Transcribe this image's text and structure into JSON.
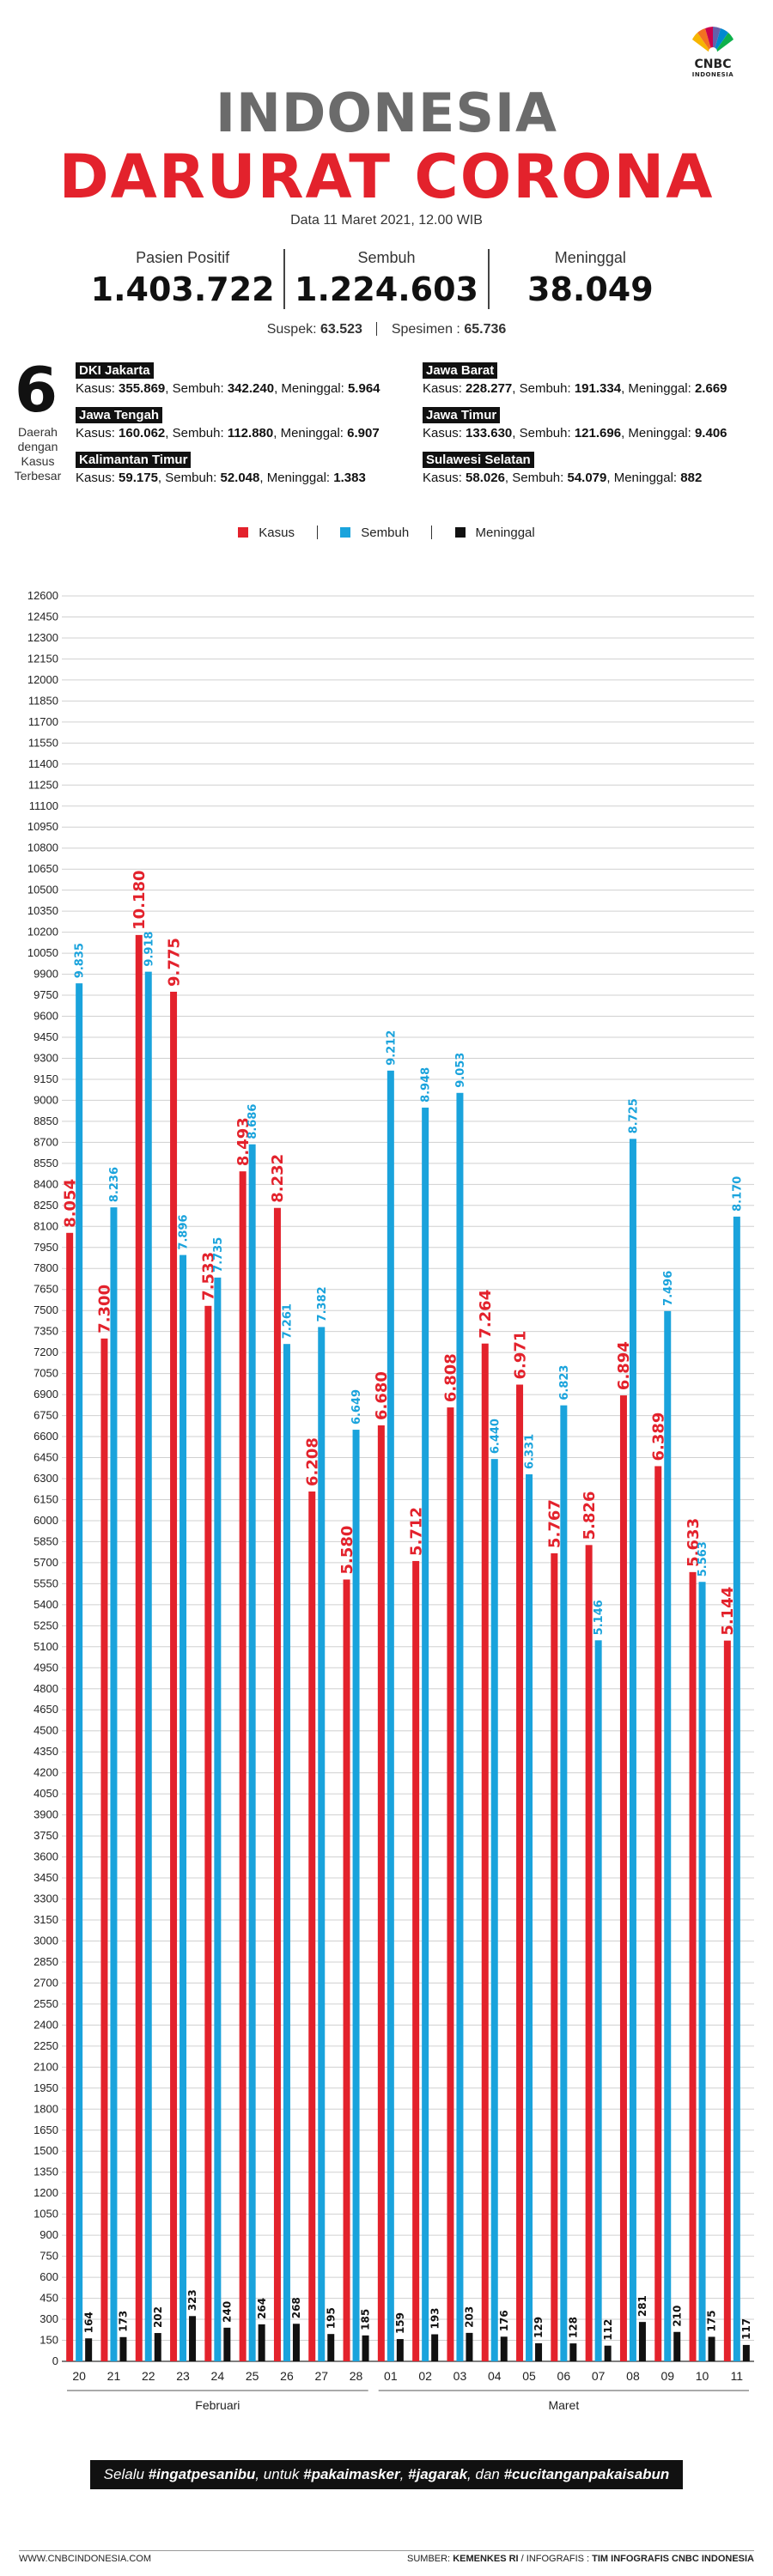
{
  "brand": {
    "name": "CNBC",
    "sub": "INDONESIA"
  },
  "header": {
    "title_line1": "INDONESIA",
    "title_line2": "DARURAT CORONA",
    "date": "Data 11 Maret 2021, 12.00 WIB"
  },
  "stats": [
    {
      "label": "Pasien Positif",
      "value": "1.403.722"
    },
    {
      "label": "Sembuh",
      "value": "1.224.603"
    },
    {
      "label": "Meninggal",
      "value": "38.049"
    }
  ],
  "suspek": {
    "label": "Suspek:",
    "value": "63.523",
    "spesimen_label": "Spesimen :",
    "spesimen_value": "65.736"
  },
  "regions_header": {
    "number": "6",
    "label": "Daerah dengan Kasus Terbesar"
  },
  "regions": [
    {
      "name": "DKI Jakarta",
      "kasus": "355.869",
      "sembuh": "342.240",
      "meninggal": "5.964"
    },
    {
      "name": "Jawa Barat",
      "kasus": "228.277",
      "sembuh": "191.334",
      "meninggal": "2.669"
    },
    {
      "name": "Jawa Tengah",
      "kasus": "160.062",
      "sembuh": "112.880",
      "meninggal": "6.907"
    },
    {
      "name": "Jawa Timur",
      "kasus": "133.630",
      "sembuh": "121.696",
      "meninggal": "9.406"
    },
    {
      "name": "Kalimantan Timur",
      "kasus": "59.175",
      "sembuh": "52.048",
      "meninggal": "1.383"
    },
    {
      "name": "Sulawesi Selatan",
      "kasus": "58.026",
      "sembuh": "54.079",
      "meninggal": "882"
    }
  ],
  "region_labels": {
    "kasus": "Kasus:",
    "sembuh": "Sembuh:",
    "meninggal": "Meninggal:"
  },
  "legend": [
    {
      "label": "Kasus",
      "color": "#e3222c"
    },
    {
      "label": "Sembuh",
      "color": "#1aa3dc"
    },
    {
      "label": "Meninggal",
      "color": "#111111"
    }
  ],
  "colors": {
    "kasus": "#e3222c",
    "sembuh": "#1aa3dc",
    "meninggal": "#111111",
    "title_gray": "#6b6b6b"
  },
  "chart_data": {
    "type": "bar",
    "categories": [
      "20",
      "21",
      "22",
      "23",
      "24",
      "25",
      "26",
      "27",
      "28",
      "01",
      "02",
      "03",
      "04",
      "05",
      "06",
      "07",
      "08",
      "09",
      "10",
      "11"
    ],
    "groups": [
      {
        "label": "Februari",
        "count": 9
      },
      {
        "label": "Maret",
        "count": 11
      }
    ],
    "series": [
      {
        "name": "Kasus",
        "color": "#e3222c",
        "values": [
          8054,
          7300,
          10180,
          9775,
          7533,
          8493,
          8232,
          6208,
          5580,
          6680,
          5712,
          6808,
          7264,
          6971,
          5767,
          5826,
          6894,
          6389,
          5633,
          5144
        ],
        "labels": [
          "8.054",
          "7.300",
          "10.180",
          "9.775",
          "7.533",
          "8.493",
          "8.232",
          "6.208",
          "5.580",
          "6.680",
          "5.712",
          "6.808",
          "7.264",
          "6.971",
          "5.767",
          "5.826",
          "6.894",
          "6.389",
          "5.633",
          "5.144"
        ]
      },
      {
        "name": "Sembuh",
        "color": "#1aa3dc",
        "values": [
          9835,
          8236,
          9918,
          7896,
          7735,
          8686,
          7261,
          7382,
          6649,
          9212,
          8948,
          9053,
          6440,
          6331,
          6823,
          5146,
          8725,
          7496,
          5563,
          8170
        ],
        "labels": [
          "9.835",
          "8.236",
          "9.918",
          "7.896",
          "7.735",
          "8.686",
          "7.261",
          "7.382",
          "6.649",
          "9.212",
          "8.948",
          "9.053",
          "6.440",
          "6.331",
          "6.823",
          "5.146",
          "8.725",
          "7.496",
          "5.563",
          "8.170"
        ]
      },
      {
        "name": "Meninggal",
        "color": "#111111",
        "values": [
          164,
          173,
          202,
          323,
          240,
          264,
          268,
          195,
          185,
          159,
          193,
          203,
          176,
          129,
          128,
          112,
          281,
          210,
          175,
          117
        ],
        "labels": [
          "164",
          "173",
          "202",
          "323",
          "240",
          "264",
          "268",
          "195",
          "185",
          "159",
          "193",
          "203",
          "176",
          "129",
          "128",
          "112",
          "281",
          "210",
          "175",
          "117"
        ]
      }
    ],
    "ylim": [
      0,
      12600
    ],
    "ytick_step": 150,
    "grid": true,
    "legend_position": "top-center"
  },
  "footer": {
    "slogan_prefix": "Selalu ",
    "slogan_1": "#ingatpesanibu",
    "slogan_mid1": ", untuk ",
    "slogan_2": "#pakaimasker",
    "slogan_mid2": ", ",
    "slogan_3": "#jagarak",
    "slogan_mid3": ", dan ",
    "slogan_4": "#cucitanganpakaisabun",
    "website": "WWW.CNBCINDONESIA.COM",
    "source_label": "SUMBER: ",
    "source": "KEMENKES RI",
    "credit_label": " / INFOGRAFIS : ",
    "credit": "TIM INFOGRAFIS CNBC INDONESIA"
  }
}
